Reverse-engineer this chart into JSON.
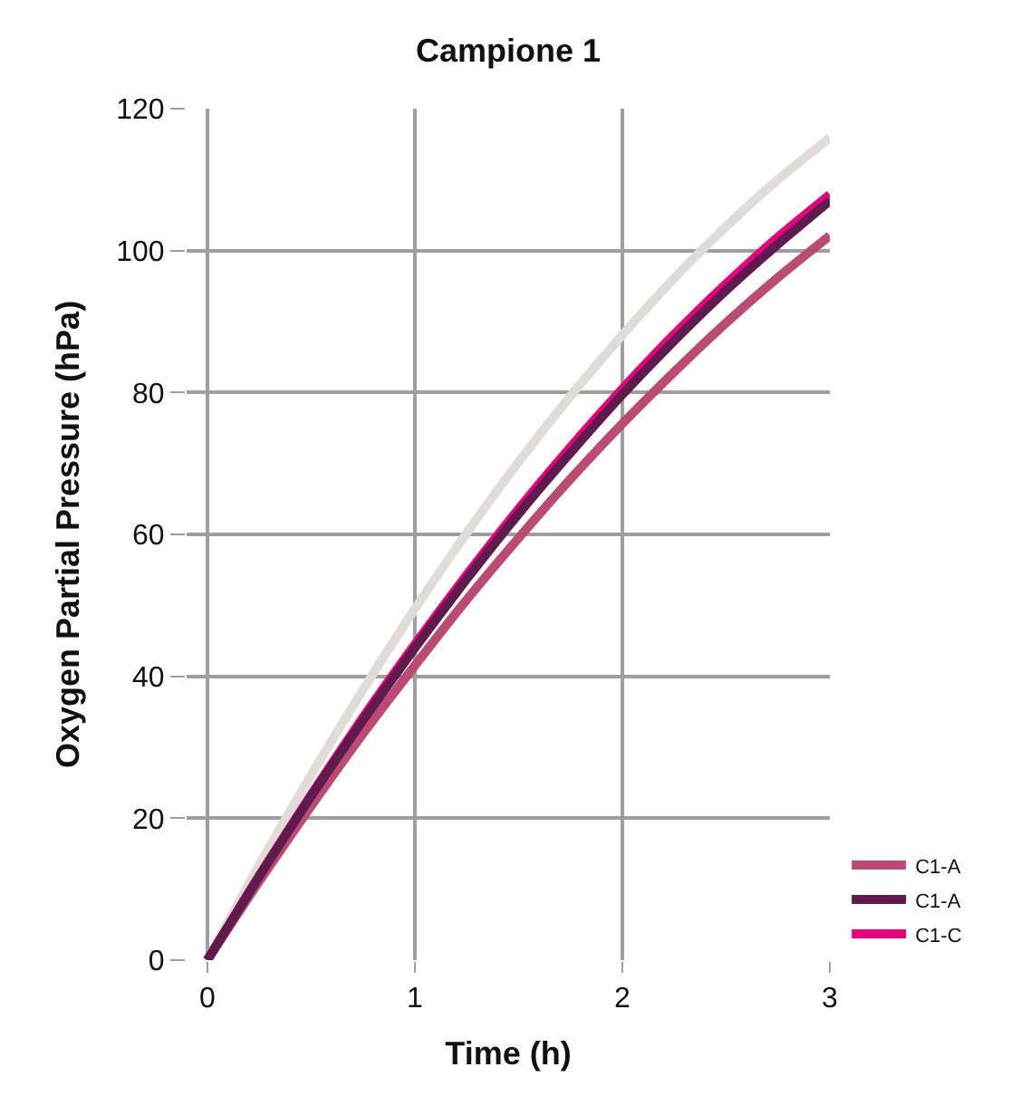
{
  "chart_data": {
    "type": "line",
    "title": "Campione 1",
    "xlabel": "Time (h)",
    "ylabel": "Oxygen Partial Pressure (hPa)",
    "x": [
      0,
      0.25,
      0.5,
      0.75,
      1,
      1.25,
      1.5,
      1.75,
      2,
      2.25,
      2.5,
      2.75,
      3
    ],
    "series": [
      {
        "color": "#e2dcd9",
        "values": [
          0,
          13.4,
          26.1,
          38.1,
          49.5,
          60.2,
          70.2,
          79.5,
          88.1,
          96.1,
          103.4,
          110.0,
          115.9
        ]
      },
      {
        "name": "C1-A",
        "color": "#bb4a74",
        "values": [
          0,
          11.1,
          21.7,
          31.9,
          41.5,
          50.8,
          59.5,
          67.8,
          75.6,
          82.9,
          89.8,
          96.2,
          102.1
        ]
      },
      {
        "name": "C1-A",
        "color": "#5e1b4c",
        "values": [
          0,
          11.8,
          23.1,
          33.8,
          44.0,
          53.7,
          62.9,
          71.5,
          79.7,
          87.3,
          94.4,
          100.9,
          107.0
        ]
      },
      {
        "name": "C1-C",
        "color": "#e6007e",
        "values": [
          0,
          11.9,
          23.3,
          34.2,
          44.5,
          54.3,
          63.6,
          72.3,
          80.5,
          88.2,
          95.3,
          101.9,
          107.9
        ]
      }
    ],
    "xlim": [
      -0.1,
      3
    ],
    "xticks": [
      0,
      1,
      2,
      3
    ],
    "ylim": [
      0,
      120
    ],
    "yticks": [
      0,
      20,
      40,
      60,
      80,
      100,
      120
    ],
    "grid": true,
    "legend": "bottom right",
    "marker": "none",
    "line_style": "solid"
  }
}
